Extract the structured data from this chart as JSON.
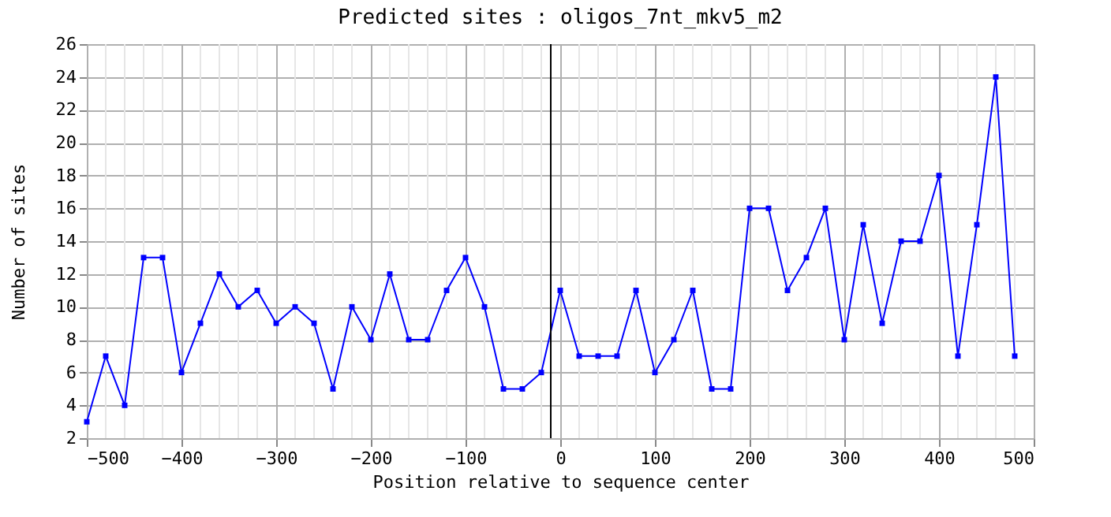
{
  "chart_data": {
    "type": "line",
    "title": "Predicted sites : oligos_7nt_mkv5_m2",
    "xlabel": "Position relative to sequence center",
    "ylabel": "Number of sites",
    "x": [
      -500,
      -480,
      -460,
      -440,
      -420,
      -400,
      -380,
      -360,
      -340,
      -320,
      -300,
      -280,
      -260,
      -240,
      -220,
      -200,
      -180,
      -160,
      -140,
      -120,
      -100,
      -80,
      -60,
      -40,
      -20,
      0,
      20,
      40,
      60,
      80,
      100,
      120,
      140,
      160,
      180,
      200,
      220,
      240,
      260,
      280,
      300,
      320,
      340,
      360,
      380,
      400,
      420,
      440,
      460,
      480
    ],
    "series": [
      {
        "color": "#0000ff",
        "values": [
          3,
          7,
          4,
          13,
          13,
          6,
          9,
          12,
          10,
          11,
          9,
          10,
          9,
          5,
          10,
          8,
          12,
          8,
          8,
          11,
          13,
          10,
          5,
          5,
          6,
          11,
          7,
          7,
          7,
          11,
          6,
          8,
          11,
          5,
          5,
          16,
          16,
          11,
          13,
          16,
          8,
          15,
          9,
          14,
          14,
          18,
          7,
          15,
          24,
          7
        ]
      }
    ],
    "xlim": [
      -500,
      500
    ],
    "xticks": [
      -500,
      -400,
      -300,
      -200,
      -100,
      0,
      100,
      200,
      300,
      400,
      500
    ],
    "ylim": [
      2,
      26
    ],
    "yticks": [
      2,
      4,
      6,
      8,
      10,
      12,
      14,
      16,
      18,
      20,
      22,
      24,
      26
    ],
    "grid": true,
    "marker": "square",
    "line_style": "solid",
    "ref_lines": [
      {
        "axis": "x",
        "value": -10,
        "color": "#000000"
      }
    ]
  }
}
